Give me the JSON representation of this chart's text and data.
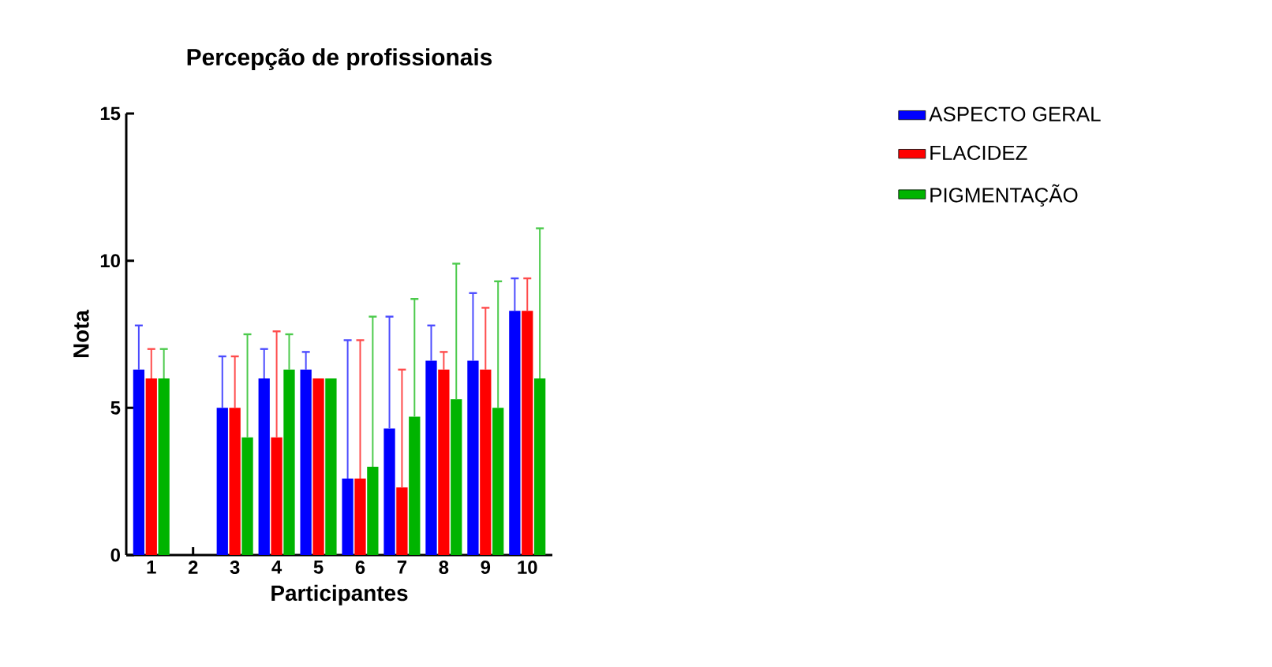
{
  "chart_data": {
    "type": "bar",
    "title": "Percepção de profissionais",
    "xlabel": "Participantes",
    "ylabel": "Nota",
    "categories": [
      "1",
      "2",
      "3",
      "4",
      "5",
      "6",
      "7",
      "8",
      "9",
      "10"
    ],
    "series": [
      {
        "name": "ASPECTO GERAL",
        "color": "#0000ff",
        "values": [
          6.3,
          null,
          5,
          6,
          6.3,
          2.6,
          4.3,
          6.6,
          6.6,
          8.3
        ],
        "errors": [
          [
            6.3,
            7.8
          ],
          null,
          [
            5,
            6.75
          ],
          [
            6,
            7
          ],
          [
            6.3,
            6.9
          ],
          [
            2.6,
            7.3
          ],
          [
            4.3,
            8.1
          ],
          [
            6.6,
            7.8
          ],
          [
            6.6,
            8.9
          ],
          [
            8.3,
            9.4
          ]
        ]
      },
      {
        "name": "FLACIDEZ",
        "color": "#ff0000",
        "values": [
          6,
          null,
          5,
          4,
          6,
          2.6,
          2.3,
          6.3,
          6.3,
          8.3
        ],
        "errors": [
          [
            6,
            7
          ],
          null,
          [
            5,
            6.75
          ],
          [
            4,
            7.6
          ],
          null,
          [
            2.6,
            7.3
          ],
          [
            2.3,
            6.3
          ],
          [
            6.3,
            6.9
          ],
          [
            6.3,
            8.4
          ],
          [
            8.3,
            9.4
          ]
        ]
      },
      {
        "name": "PIGMENTAÇÃO",
        "color": "#00b400",
        "values": [
          6,
          null,
          4,
          6.3,
          6,
          3,
          4.7,
          5.3,
          5,
          6
        ],
        "errors": [
          [
            6,
            7
          ],
          null,
          [
            4,
            7.5
          ],
          [
            6.3,
            7.5
          ],
          null,
          [
            3,
            8.1
          ],
          [
            4.7,
            8.7
          ],
          [
            5.3,
            9.9
          ],
          [
            5,
            9.3
          ],
          [
            6,
            11.1
          ]
        ]
      }
    ],
    "ylim": [
      0,
      15
    ],
    "yticks": [
      0,
      5,
      10,
      15
    ],
    "grid": false,
    "legend": "right"
  }
}
